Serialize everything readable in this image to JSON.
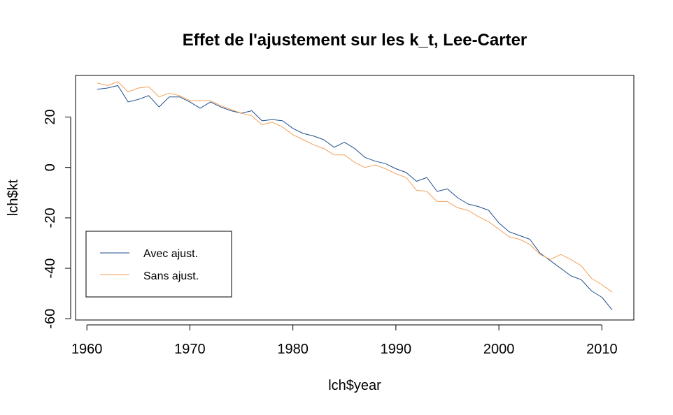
{
  "chart_data": {
    "type": "line",
    "title": "Effet de l'ajustement sur les k_t, Lee-Carter",
    "xlabel": "lch$year",
    "ylabel": "lch$kt",
    "xlim": [
      1958.9,
      2013.1
    ],
    "ylim": [
      -60.5,
      36.5
    ],
    "xticks": [
      1960,
      1970,
      1980,
      1990,
      2000,
      2010
    ],
    "yticks": [
      20,
      0,
      -20,
      -40,
      -60
    ],
    "grid": false,
    "legend_position": "bottom-left",
    "x": [
      1961,
      1962,
      1963,
      1964,
      1965,
      1966,
      1967,
      1968,
      1969,
      1970,
      1971,
      1972,
      1973,
      1974,
      1975,
      1976,
      1977,
      1978,
      1979,
      1980,
      1981,
      1982,
      1983,
      1984,
      1985,
      1986,
      1987,
      1988,
      1989,
      1990,
      1991,
      1992,
      1993,
      1994,
      1995,
      1996,
      1997,
      1998,
      1999,
      2000,
      2001,
      2002,
      2003,
      2004,
      2005,
      2006,
      2007,
      2008,
      2009,
      2010,
      2011
    ],
    "series": [
      {
        "name": "Avec ajust.",
        "color": "#1f4e8c",
        "values": [
          31,
          31.5,
          32.5,
          26,
          27,
          28.5,
          24,
          28,
          28,
          26,
          23.5,
          26,
          24,
          22.5,
          21.5,
          22.5,
          18.5,
          19,
          18.5,
          15.5,
          13.5,
          12.5,
          11,
          8,
          10,
          7.5,
          4,
          2.5,
          1.5,
          -0.5,
          -2,
          -5.5,
          -4,
          -9.5,
          -8.5,
          -12,
          -14.5,
          -15.5,
          -17,
          -22,
          -25.5,
          -27,
          -28.5,
          -34,
          -37,
          -40,
          -43,
          -44.5,
          -49,
          -51.5,
          -56.5
        ]
      },
      {
        "name": "Sans ajust.",
        "color": "#f4a05a",
        "values": [
          33.5,
          32.5,
          34,
          30,
          31.5,
          32,
          28,
          29.5,
          28.5,
          26.5,
          26.5,
          26.5,
          24.5,
          23,
          21.5,
          20.5,
          17,
          18,
          16,
          13,
          11,
          9,
          7.5,
          5,
          5,
          2,
          0,
          1,
          -0.5,
          -2.5,
          -4,
          -9,
          -9.5,
          -13.5,
          -13.5,
          -16,
          -17,
          -19.5,
          -21.5,
          -24.5,
          -27.5,
          -28.5,
          -30.5,
          -34.5,
          -36.5,
          -34.5,
          -36.5,
          -39,
          -44,
          -46.5,
          -49.5
        ]
      }
    ]
  }
}
